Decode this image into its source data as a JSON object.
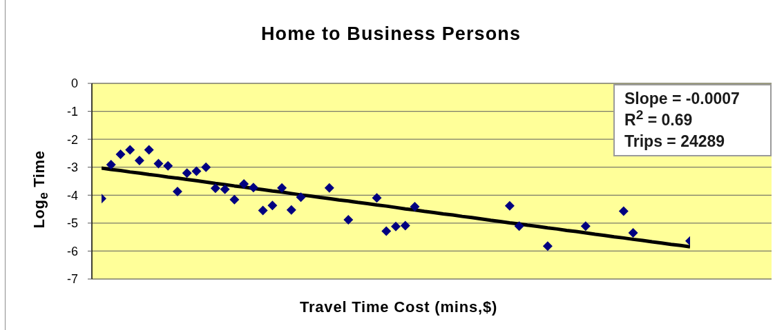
{
  "chart_data": {
    "type": "scatter",
    "title": "Home to Business Persons",
    "xlabel": "Travel Time Cost (mins,$)",
    "ylabel": "Log$_{e}$ Time",
    "categories": [
      null,
      null,
      null,
      null,
      null,
      null,
      null,
      null,
      null,
      null,
      null,
      null,
      null,
      null,
      null,
      null,
      null,
      null,
      null,
      null,
      null,
      null,
      null,
      null,
      null,
      null,
      null,
      null,
      null,
      null,
      null,
      null,
      null,
      null,
      null,
      null,
      null,
      null,
      null,
      null,
      null,
      null,
      null,
      null,
      null,
      null,
      null,
      null,
      null,
      null,
      null,
      null,
      null,
      null,
      null,
      null,
      null,
      null,
      null,
      null,
      null,
      null,
      null
    ],
    "series": [
      {
        "color": "#000080",
        "marker": "diamond",
        "values": [
          -4.12,
          -2.91,
          -2.54,
          -2.38,
          -2.76,
          -2.38,
          -2.87,
          -2.95,
          -3.87,
          -3.21,
          -3.14,
          -3,
          -3.75,
          -3.79,
          -4.16,
          -3.6,
          -3.73,
          -4.55,
          -4.37,
          -3.74,
          -4.53,
          -4.07,
          null,
          null,
          -3.74,
          null,
          -4.88,
          null,
          null,
          -4.1,
          -5.29,
          -5.12,
          -5.09,
          -4.41,
          null,
          null,
          null,
          null,
          null,
          null,
          null,
          null,
          null,
          -4.38,
          -5.11,
          null,
          null,
          -5.82,
          null,
          null,
          null,
          -5.11,
          null,
          null,
          null,
          -4.57,
          -5.35,
          null,
          null,
          null,
          null,
          null,
          -5.64
        ]
      },
      {
        "type": "line",
        "color": "#000000",
        "values": [
          -3.03,
          -3.08,
          -3.12,
          -3.17,
          -3.21,
          -3.26,
          -3.3,
          -3.35,
          -3.39,
          -3.44,
          -3.48,
          -3.53,
          -3.58,
          -3.62,
          -3.67,
          -3.71,
          -3.76,
          -3.8,
          -3.85,
          -3.89,
          -3.94,
          -3.99,
          -4.03,
          -4.08,
          -4.12,
          -4.17,
          -4.21,
          -4.26,
          -4.3,
          -4.35,
          -4.39,
          -4.44,
          -4.49,
          -4.53,
          -4.58,
          -4.62,
          -4.67,
          -4.71,
          -4.76,
          -4.8,
          -4.85,
          -4.9,
          -4.94,
          -4.99,
          -5.03,
          -5.08,
          -5.12,
          -5.17,
          -5.21,
          -5.26,
          -5.3,
          -5.35,
          -5.4,
          -5.44,
          -5.49,
          -5.53,
          -5.58,
          -5.62,
          -5.67,
          -5.71,
          -5.76,
          -5.8,
          -5.85
        ]
      }
    ],
    "ylim": [
      -7,
      0
    ],
    "yticks": [
      0,
      -1,
      -2,
      -3,
      -4,
      -5,
      -6,
      -7
    ],
    "grid": "y",
    "tick_labels": "y",
    "annotations": [
      "Slope = -0.0007",
      "R$^{2}$ = 0.69",
      "Trips = 24289"
    ]
  }
}
